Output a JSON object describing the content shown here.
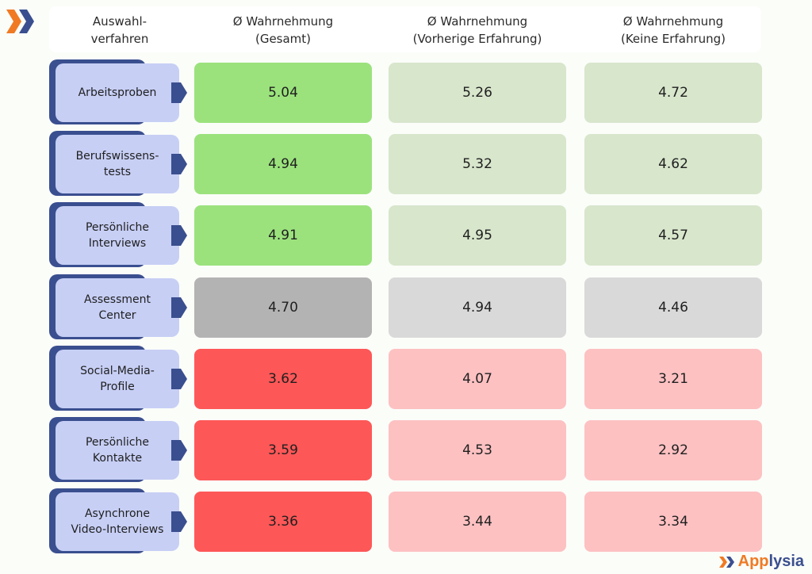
{
  "colors": {
    "brand_orange": "#f07a24",
    "brand_navy": "#3a4f8f",
    "label_fill": "#c7cff5",
    "high_strong": "#9be27d",
    "high_light": "#d8e6cc",
    "mid_strong": "#b3b3b3",
    "mid_light": "#d9d9d9",
    "low_strong": "#fe5757",
    "low_light": "#fdc1c2"
  },
  "header": {
    "method": [
      "Auswahl-",
      "verfahren"
    ],
    "total": [
      "Ø Wahrnehmung",
      "(Gesamt)"
    ],
    "prior": [
      "Ø Wahrnehmung",
      "(Vorherige Erfahrung)"
    ],
    "none": [
      "Ø Wahrnehmung",
      "(Keine Erfahrung)"
    ]
  },
  "brand": {
    "part1": "App",
    "part2": "lysia"
  },
  "chart_data": {
    "type": "table",
    "title": "",
    "columns": [
      "Auswahlverfahren",
      "Ø Wahrnehmung (Gesamt)",
      "Ø Wahrnehmung (Vorherige Erfahrung)",
      "Ø Wahrnehmung (Keine Erfahrung)"
    ],
    "rows": [
      {
        "label": [
          "Arbeitsproben"
        ],
        "name": "Arbeitsproben",
        "category": "high",
        "total": "5.04",
        "prior": "5.26",
        "none": "4.72"
      },
      {
        "label": [
          "Berufswissens-",
          "tests"
        ],
        "name": "Berufswissenstests",
        "category": "high",
        "total": "4.94",
        "prior": "5.32",
        "none": "4.62"
      },
      {
        "label": [
          "Persönliche",
          "Interviews"
        ],
        "name": "Persönliche Interviews",
        "category": "high",
        "total": "4.91",
        "prior": "4.95",
        "none": "4.57"
      },
      {
        "label": [
          "Assessment",
          "Center"
        ],
        "name": "Assessment Center",
        "category": "mid",
        "total": "4.70",
        "prior": "4.94",
        "none": "4.46"
      },
      {
        "label": [
          "Social-Media-",
          "Profile"
        ],
        "name": "Social-Media-Profile",
        "category": "low",
        "total": "3.62",
        "prior": "4.07",
        "none": "3.21"
      },
      {
        "label": [
          "Persönliche",
          "Kontakte"
        ],
        "name": "Persönliche Kontakte",
        "category": "low",
        "total": "3.59",
        "prior": "4.53",
        "none": "2.92"
      },
      {
        "label": [
          "Asynchrone",
          "Video-Interviews"
        ],
        "name": "Asynchrone Video-Interviews",
        "category": "low",
        "total": "3.36",
        "prior": "3.44",
        "none": "3.34"
      }
    ]
  }
}
